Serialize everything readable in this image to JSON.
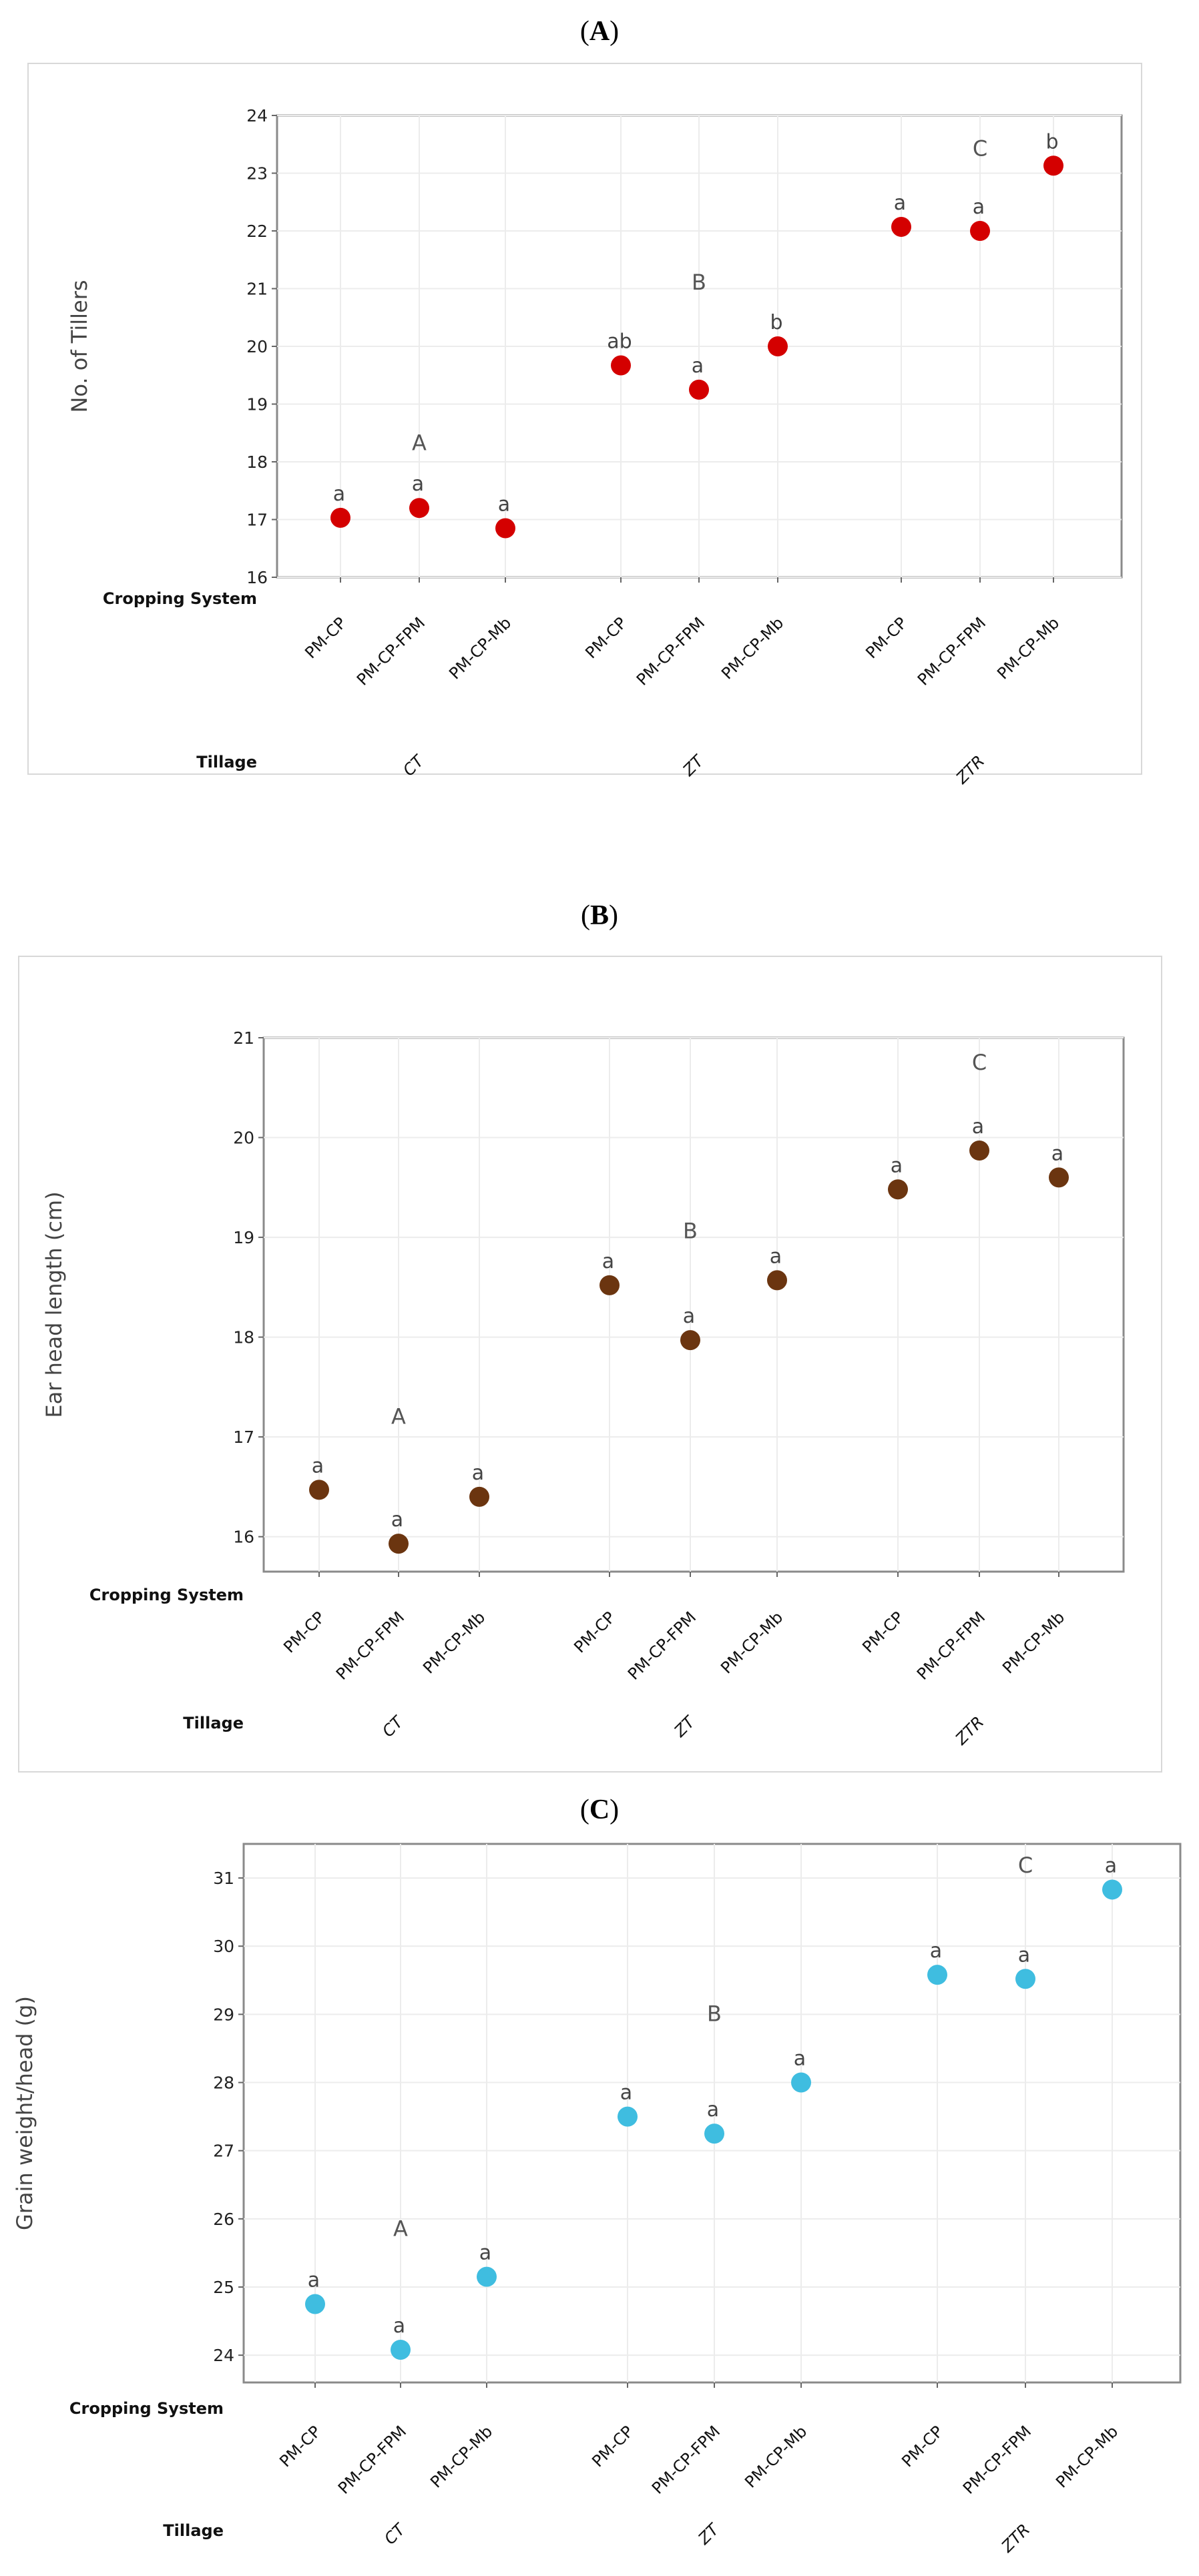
{
  "chart_data": [
    {
      "panel": "(A)",
      "type": "scatter",
      "ylabel": "No. of Tillers",
      "ylim": [
        16,
        24
      ],
      "yticks": [
        16,
        17,
        18,
        19,
        20,
        21,
        22,
        23,
        24
      ],
      "row_labels": {
        "cropping": "Cropping System",
        "tillage": "Tillage"
      },
      "groups": [
        "CT",
        "ZT",
        "ZTR"
      ],
      "categories": [
        "PM-CP",
        "PM-CP-FPM",
        "PM-CP-Mb"
      ],
      "color": "#d40000",
      "group_letters": [
        "A",
        "B",
        "C"
      ],
      "group_letter_y": [
        18.2,
        20.98,
        23.3
      ],
      "values": [
        [
          17.03,
          17.2,
          16.85
        ],
        [
          19.67,
          19.25,
          20.0
        ],
        [
          22.07,
          22.0,
          23.13
        ]
      ],
      "letters": [
        [
          "a",
          "a",
          "a"
        ],
        [
          "ab",
          "a",
          "b"
        ],
        [
          "a",
          "a",
          "b"
        ]
      ]
    },
    {
      "panel": "(B)",
      "type": "scatter",
      "ylabel": "Ear head length (cm)",
      "ylim": [
        15.65,
        21.0
      ],
      "yticks": [
        16,
        17,
        18,
        19,
        20,
        21
      ],
      "row_labels": {
        "cropping": "Cropping System",
        "tillage": "Tillage"
      },
      "groups": [
        "CT",
        "ZT",
        "ZTR"
      ],
      "categories": [
        "PM-CP",
        "PM-CP-FPM",
        "PM-CP-Mb"
      ],
      "color": "#6b3510",
      "group_letters": [
        "A",
        "B",
        "C"
      ],
      "group_letter_y": [
        17.13,
        18.99,
        20.68
      ],
      "values": [
        [
          16.47,
          15.93,
          16.4
        ],
        [
          18.52,
          17.97,
          18.57
        ],
        [
          19.48,
          19.87,
          19.6
        ]
      ],
      "letters": [
        [
          "a",
          "a",
          "a"
        ],
        [
          "a",
          "a",
          "a"
        ],
        [
          "a",
          "a",
          "a"
        ]
      ]
    },
    {
      "panel": "(C)",
      "type": "scatter",
      "ylabel": "Grain weight/head (g)",
      "ylim": [
        23.6,
        31.5
      ],
      "yticks": [
        24,
        25,
        26,
        27,
        28,
        29,
        30,
        31
      ],
      "row_labels": {
        "cropping": "Cropping System",
        "tillage": "Tillage"
      },
      "groups": [
        "CT",
        "ZT",
        "ZTR"
      ],
      "categories": [
        "PM-CP",
        "PM-CP-FPM",
        "PM-CP-Mb"
      ],
      "color": "#3fbde0",
      "group_letters": [
        "A",
        "B",
        "C"
      ],
      "group_letter_y": [
        25.75,
        28.9,
        31.08
      ],
      "values": [
        [
          24.75,
          24.08,
          25.15
        ],
        [
          27.5,
          27.25,
          28.0
        ],
        [
          29.58,
          29.52,
          30.83
        ]
      ],
      "letters": [
        [
          "a",
          "a",
          "a"
        ],
        [
          "a",
          "a",
          "a"
        ],
        [
          "a",
          "a",
          "a"
        ]
      ]
    }
  ]
}
